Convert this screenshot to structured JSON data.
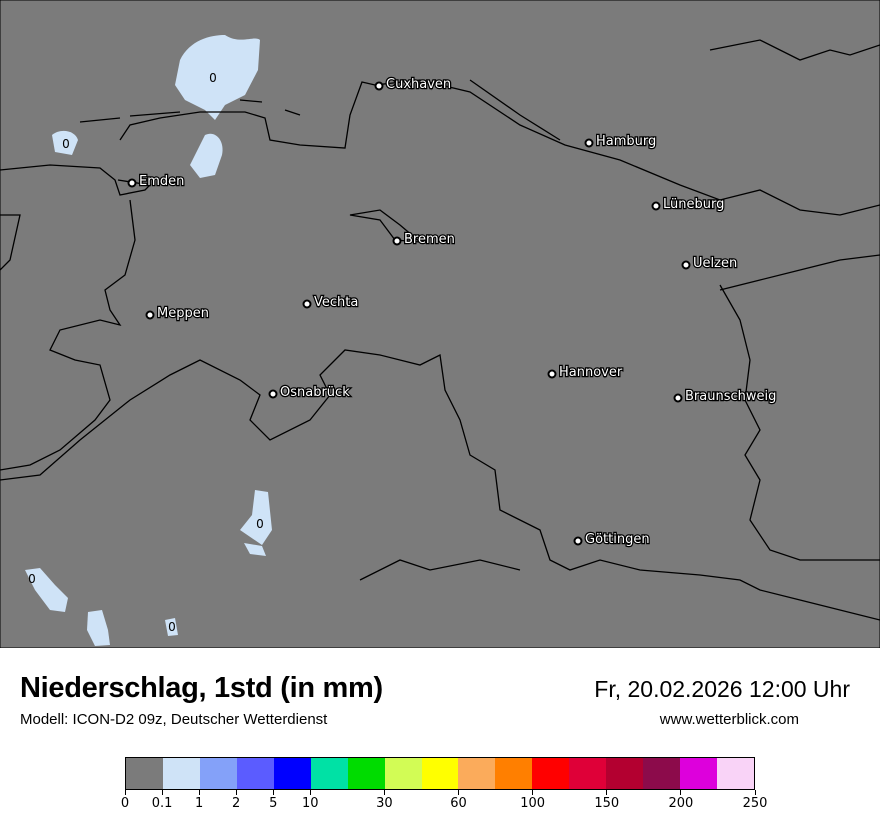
{
  "map": {
    "background_color": "#7b7b7b",
    "precip_color": "#cfe3f7",
    "cities": [
      "Cuxhaven",
      "Hamburg",
      "Emden",
      "Lüneburg",
      "Bremen",
      "Uelzen",
      "Vechta",
      "Meppen",
      "Hannover",
      "Osnabrück",
      "Braunschweig",
      "Göttingen"
    ],
    "value_labels": [
      "0",
      "0",
      "0",
      "0",
      "0"
    ]
  },
  "header": {
    "title": "Niederschlag, 1std (in mm)",
    "subtitle": "Modell: ICON-D2 09z, Deutscher Wetterdienst",
    "datetime": "Fr, 20.02.2026 12:00 Uhr",
    "website": "www.wetterblick.com"
  },
  "legend": {
    "colors": [
      "#7b7b7b",
      "#cfe3f7",
      "#84a1f9",
      "#5b5cff",
      "#0000ff",
      "#00e1a5",
      "#00dc00",
      "#d2fc55",
      "#ffff00",
      "#fbab5b",
      "#ff7f00",
      "#ff0000",
      "#df0038",
      "#b30030",
      "#8c0b4b",
      "#dd00dc",
      "#f9d3f7"
    ],
    "tick_labels": [
      "0",
      "0.1",
      "1",
      "2",
      "5",
      "10",
      "30",
      "60",
      "100",
      "150",
      "200",
      "250"
    ]
  }
}
